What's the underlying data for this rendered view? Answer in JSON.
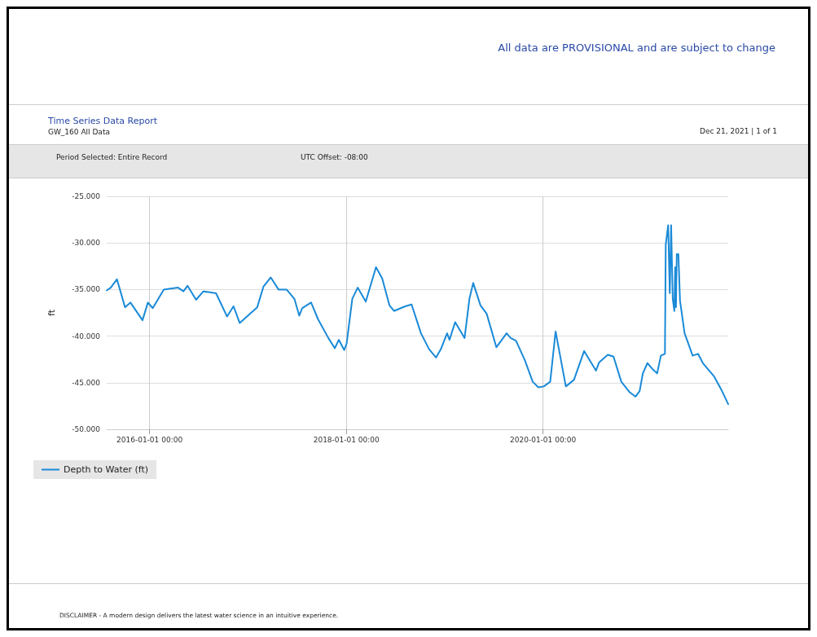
{
  "chart_data": {
    "type": "line",
    "title": "Time Series Data Report",
    "subtitle": "GW_160 All Data",
    "ylabel": "ft",
    "annotations": [
      "All data are PROVISIONAL and are subject to change",
      "Dec 21, 2021 | 1 of 1",
      "Period Selected: Entire Record",
      "UTC Offset: -08:00",
      "DISCLAIMER - A modern design delivers the latest water science in an intuitive experience."
    ],
    "x": [
      "2015-07-26",
      "2015-08-10",
      "2015-09-02",
      "2015-10-02",
      "2015-10-22",
      "2015-12-06",
      "2015-12-26",
      "2016-01-13",
      "2016-02-23",
      "2016-04-16",
      "2016-05-06",
      "2016-05-21",
      "2016-06-22",
      "2016-07-19",
      "2016-09-04",
      "2016-10-15",
      "2016-11-08",
      "2016-12-01",
      "2017-02-04",
      "2017-02-27",
      "2017-03-26",
      "2017-04-24",
      "2017-05-24",
      "2017-06-22",
      "2017-07-10",
      "2017-07-21",
      "2017-08-23",
      "2017-09-18",
      "2017-10-26",
      "2017-11-19",
      "2017-12-04",
      "2017-12-24",
      "2018-01-02",
      "2018-01-23",
      "2018-02-12",
      "2018-03-14",
      "2018-04-21",
      "2018-05-14",
      "2018-06-10",
      "2018-06-27",
      "2018-08-08",
      "2018-08-31",
      "2018-10-05",
      "2018-11-04",
      "2018-11-30",
      "2018-12-18",
      "2019-01-10",
      "2019-01-19",
      "2019-02-09",
      "2019-03-16",
      "2019-04-03",
      "2019-04-17",
      "2019-05-14",
      "2019-06-06",
      "2019-07-12",
      "2019-08-19",
      "2019-09-03",
      "2019-09-23",
      "2019-10-26",
      "2019-11-24",
      "2019-12-15",
      "2020-01-04",
      "2020-01-28",
      "2020-02-17",
      "2020-03-26",
      "2020-04-25",
      "2020-06-02",
      "2020-07-16",
      "2020-07-28",
      "2020-08-29",
      "2020-09-19",
      "2020-10-18",
      "2020-11-17",
      "2020-12-10",
      "2020-12-25",
      "2021-01-06",
      "2021-01-23",
      "2021-02-13",
      "2021-02-28",
      "2021-03-14",
      "2021-03-29",
      "2021-04-01",
      "2021-04-10",
      "2021-04-16",
      "2021-04-21",
      "2021-04-27",
      "2021-05-03",
      "2021-05-06",
      "2021-05-09",
      "2021-05-12",
      "2021-05-18",
      "2021-05-24",
      "2021-06-10",
      "2021-07-10",
      "2021-07-30",
      "2021-08-17",
      "2021-09-27",
      "2021-10-27",
      "2021-11-19"
    ],
    "series": [
      {
        "name": "Depth to Water (ft)",
        "color": "#1a8ad8",
        "values": [
          -35.1,
          -34.8,
          -33.9,
          -36.9,
          -36.4,
          -38.3,
          -36.4,
          -37.0,
          -35.0,
          -34.8,
          -35.2,
          -34.6,
          -36.1,
          -35.2,
          -35.4,
          -37.9,
          -36.8,
          -38.6,
          -36.9,
          -34.7,
          -33.7,
          -35.0,
          -35.0,
          -36.0,
          -37.8,
          -37.0,
          -36.4,
          -38.2,
          -40.2,
          -41.3,
          -40.4,
          -41.5,
          -40.8,
          -36.0,
          -34.8,
          -36.3,
          -32.6,
          -33.8,
          -36.7,
          -37.3,
          -36.8,
          -36.6,
          -39.7,
          -41.4,
          -42.3,
          -41.4,
          -39.7,
          -40.4,
          -38.5,
          -40.2,
          -36.0,
          -34.3,
          -36.7,
          -37.6,
          -41.2,
          -39.7,
          -40.2,
          -40.5,
          -42.6,
          -44.9,
          -45.5,
          -45.4,
          -44.9,
          -39.5,
          -45.4,
          -44.7,
          -41.6,
          -43.7,
          -42.8,
          -42.0,
          -42.2,
          -44.9,
          -46.0,
          -46.5,
          -45.9,
          -44.0,
          -42.9,
          -43.6,
          -44.0,
          -42.1,
          -41.9,
          -30.2,
          -28.1,
          -35.4,
          -28.1,
          -36.0,
          -37.3,
          -32.6,
          -36.9,
          -31.2,
          -31.2,
          -36.2,
          -39.7,
          -42.1,
          -41.9,
          -42.9,
          -44.3,
          -45.9,
          -47.3
        ]
      }
    ],
    "xlim": [
      "2015-07-26",
      "2021-11-19"
    ],
    "xticks": [
      {
        "value": "2016-01-01",
        "label": "2016-01-01 00:00"
      },
      {
        "value": "2018-01-01",
        "label": "2018-01-01 00:00"
      },
      {
        "value": "2020-01-01",
        "label": "2020-01-01 00:00"
      }
    ],
    "ylim": [
      -50,
      -25
    ],
    "yticks": [
      {
        "value": -50,
        "label": "-50.000"
      },
      {
        "value": -45,
        "label": "-45.000"
      },
      {
        "value": -40,
        "label": "-40.000"
      },
      {
        "value": -35,
        "label": "-35.000"
      },
      {
        "value": -30,
        "label": "-30.000"
      },
      {
        "value": -25,
        "label": "-25.000"
      }
    ],
    "grid": true,
    "legend": "bottom left",
    "marker": "none",
    "line_style": "solid"
  }
}
